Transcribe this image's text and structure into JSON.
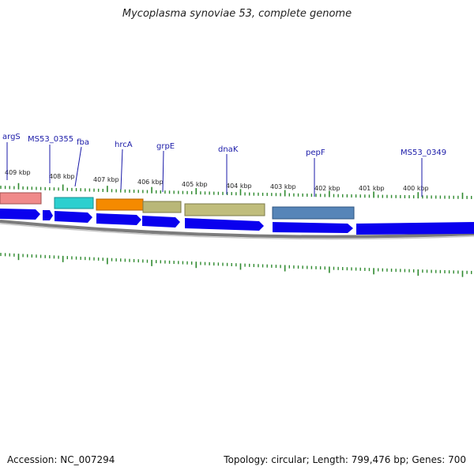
{
  "title": "Mycoplasma synoviae 53, complete genome",
  "footer": {
    "accession": "Accession: NC_007294",
    "summary": "Topology: circular; Length: 799,476 bp; Genes: 700"
  },
  "colors": {
    "cds_arrow": "#0a00ee",
    "backbone": "#888888",
    "tick": "#2f8a2f",
    "label": "#1a1aa8"
  },
  "kbp_labels": [
    "409 kbp",
    "408 kbp",
    "407 kbp",
    "406 kbp",
    "405 kbp",
    "404 kbp",
    "403 kbp",
    "402 kbp",
    "401 kbp",
    "400 kbp"
  ],
  "gene_labels": [
    "argS",
    "MS53_0355",
    "fba",
    "hrcA",
    "grpE",
    "dnaK",
    "pepF",
    "MS53_0349"
  ],
  "feature_colors": [
    "#f08080",
    "#29c8c8",
    "#f08000",
    "#b8b870",
    "#b8b870",
    "#4f7eb0"
  ]
}
